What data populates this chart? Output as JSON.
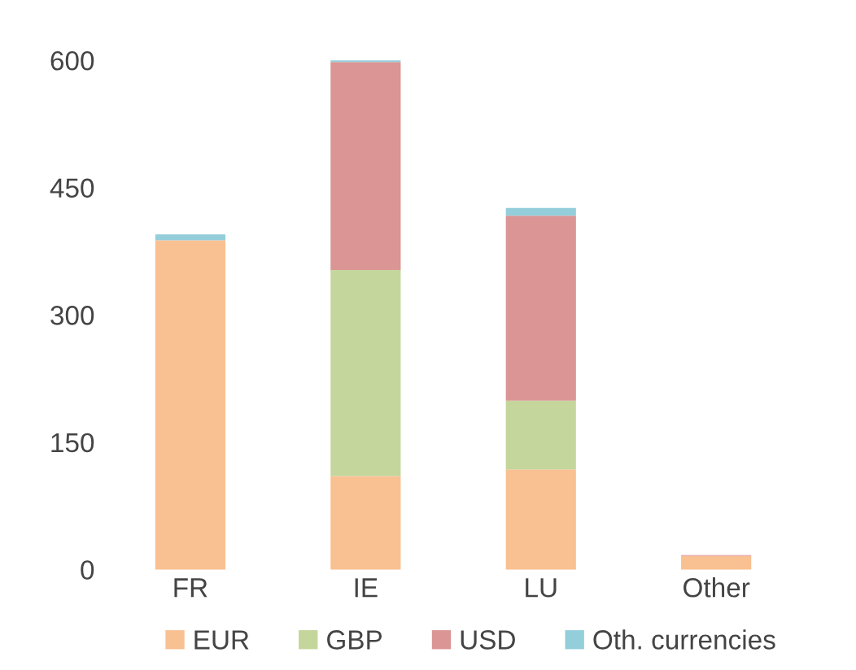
{
  "chart_data": {
    "type": "bar",
    "stacked": true,
    "categories": [
      "FR",
      "IE",
      "LU",
      "Other"
    ],
    "series": [
      {
        "name": "EUR",
        "color": "#f9c091",
        "values": [
          388,
          110,
          118,
          16
        ]
      },
      {
        "name": "GBP",
        "color": "#c4d69c",
        "values": [
          0,
          243,
          81,
          0
        ]
      },
      {
        "name": "USD",
        "color": "#da9594",
        "values": [
          0,
          245,
          218,
          1
        ]
      },
      {
        "name": "Oth. currencies",
        "color": "#94cedb",
        "values": [
          7,
          2,
          9,
          0
        ]
      }
    ],
    "ylim": [
      0,
      600
    ],
    "yticks": [
      0,
      150,
      300,
      450,
      600
    ],
    "grid": false,
    "legend": "bottom"
  }
}
